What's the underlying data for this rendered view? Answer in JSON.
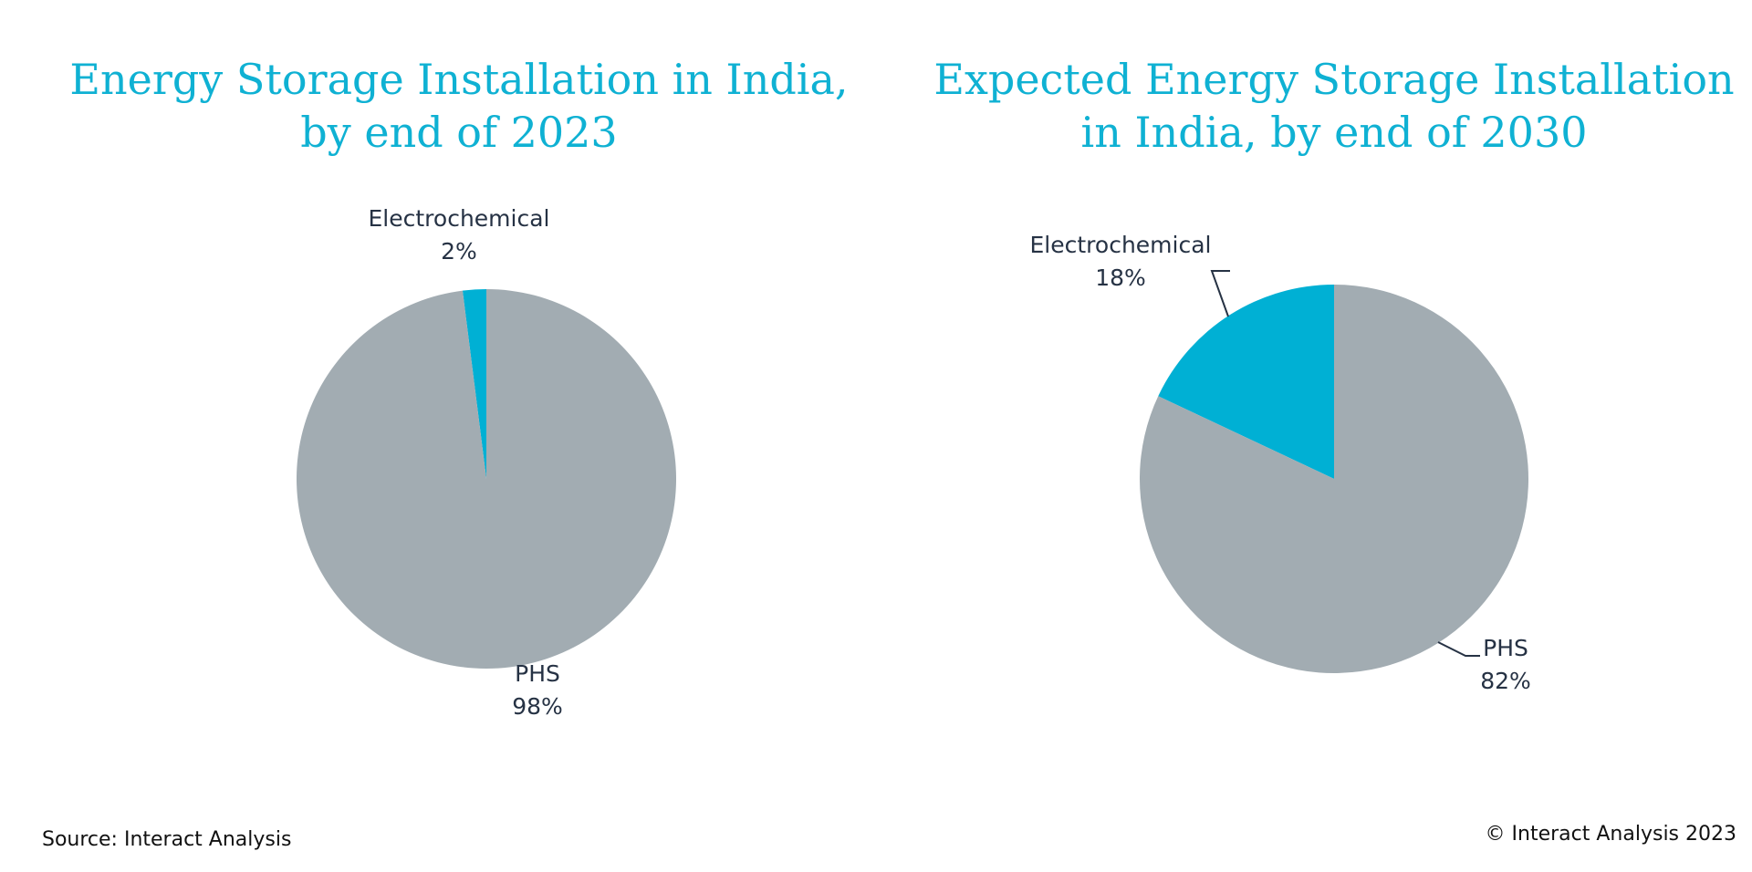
{
  "chart_data": [
    {
      "type": "pie",
      "title_lines": [
        "Energy Storage Installation in India,",
        "by end of 2023"
      ],
      "slices": [
        {
          "label": "Electrochemical",
          "value": 2,
          "value_label": "2%",
          "color": "#00b0d4"
        },
        {
          "label": "PHS",
          "value": 98,
          "value_label": "98%",
          "color": "#a2acb2"
        }
      ]
    },
    {
      "type": "pie",
      "title_lines": [
        "Expected Energy Storage Installation",
        "in India, by end of 2030"
      ],
      "slices": [
        {
          "label": "Electrochemical",
          "value": 18,
          "value_label": "18%",
          "color": "#00b0d4"
        },
        {
          "label": "PHS",
          "value": 82,
          "value_label": "82%",
          "color": "#a2acb2"
        }
      ]
    }
  ],
  "footer": {
    "source": "Source: Interact Analysis",
    "copyright": "© Interact Analysis 2023"
  }
}
